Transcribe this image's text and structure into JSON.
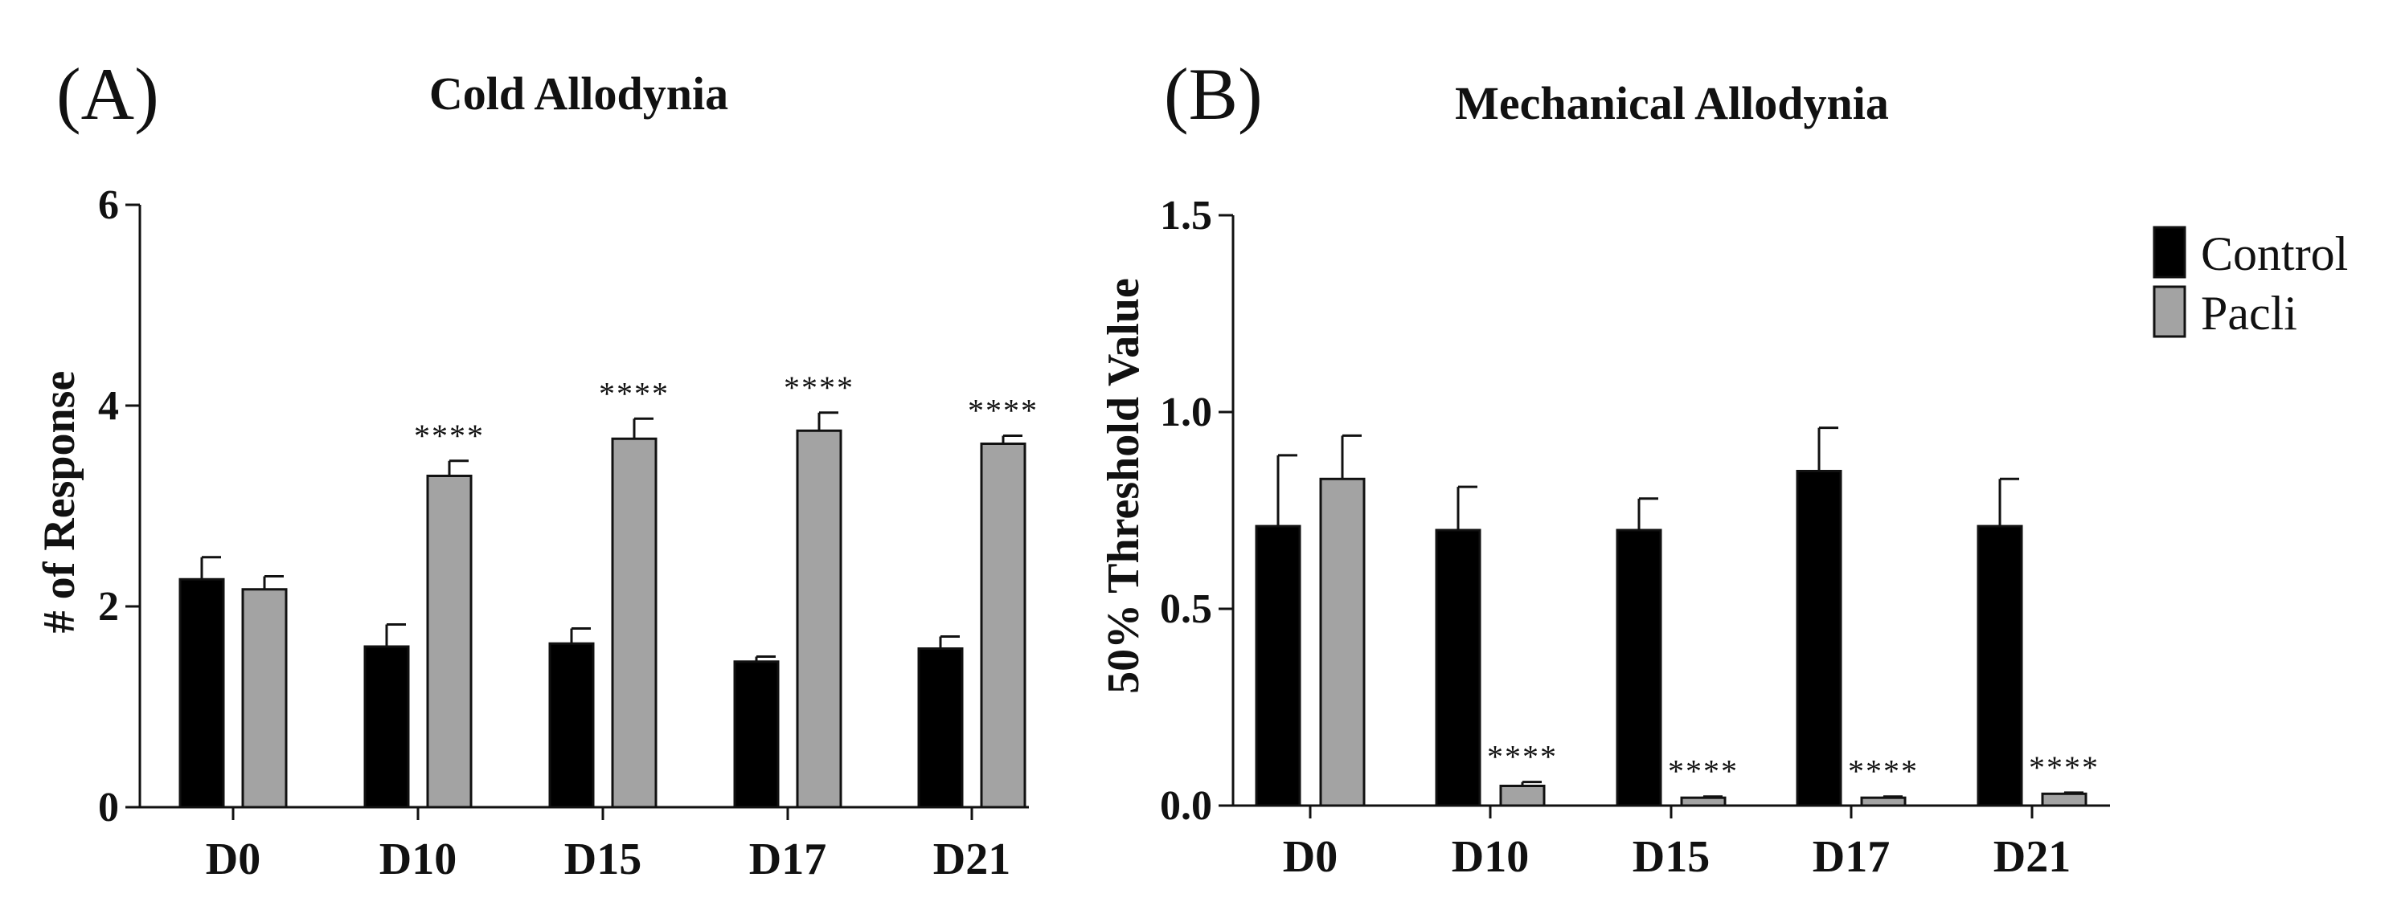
{
  "colors": {
    "control": "#000000",
    "pacli": "#a3a3a3",
    "axis": "#111111"
  },
  "legend": {
    "placement": "right",
    "items": [
      {
        "label": "Control",
        "color": "#000000"
      },
      {
        "label": "Pacli",
        "color": "#a3a3a3"
      }
    ]
  },
  "chart_data": [
    {
      "type": "bar",
      "panel": "(A)",
      "title": "Cold Allodynia",
      "xlabel": "",
      "ylabel": "# of Response",
      "ylim": [
        0,
        6
      ],
      "yticks": [
        "0",
        "2",
        "4",
        "6"
      ],
      "ytick_values": [
        0,
        2,
        4,
        6
      ],
      "categories": [
        "D0",
        "D10",
        "D15",
        "D17",
        "D21"
      ],
      "series": [
        {
          "name": "Control",
          "values": [
            2.27,
            1.6,
            1.63,
            1.45,
            1.58
          ],
          "errors": [
            0.22,
            0.22,
            0.15,
            0.05,
            0.12
          ]
        },
        {
          "name": "Pacli",
          "values": [
            2.17,
            3.3,
            3.67,
            3.75,
            3.62
          ],
          "errors": [
            0.13,
            0.15,
            0.2,
            0.18,
            0.08
          ]
        }
      ],
      "annotations": [
        "",
        "****",
        "****",
        "****",
        "****"
      ]
    },
    {
      "type": "bar",
      "panel": "(B)",
      "title": "Mechanical Allodynia",
      "xlabel": "",
      "ylabel": "50% Threshold Value",
      "ylim": [
        0,
        1.5
      ],
      "yticks": [
        "0.0",
        "0.5",
        "1.0",
        "1.5"
      ],
      "ytick_values": [
        0,
        0.5,
        1.0,
        1.5
      ],
      "categories": [
        "D0",
        "D10",
        "D15",
        "D17",
        "D21"
      ],
      "series": [
        {
          "name": "Control",
          "values": [
            0.71,
            0.7,
            0.7,
            0.85,
            0.71
          ],
          "errors": [
            0.18,
            0.11,
            0.08,
            0.11,
            0.12
          ]
        },
        {
          "name": "Pacli",
          "values": [
            0.83,
            0.05,
            0.02,
            0.02,
            0.03
          ],
          "errors": [
            0.11,
            0.01,
            0.003,
            0.003,
            0.003
          ]
        }
      ],
      "annotations": [
        "",
        "****",
        "****",
        "****",
        "****"
      ]
    }
  ]
}
